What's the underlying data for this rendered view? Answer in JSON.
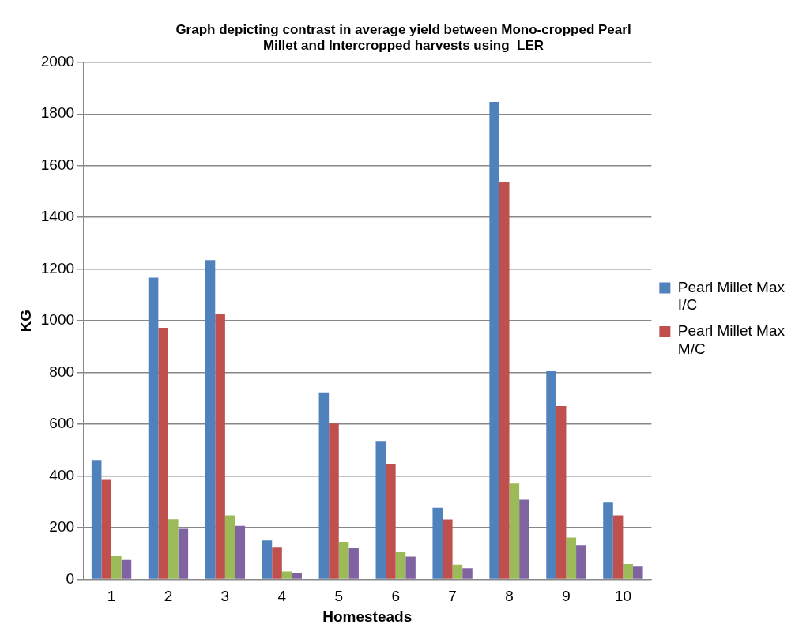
{
  "chart_data": {
    "type": "bar",
    "title": "Graph depicting contrast in average yield between Mono-cropped Pearl Millet and Intercropped harvests using  LER",
    "xlabel": "Homesteads",
    "ylabel": "KG",
    "categories": [
      "1",
      "2",
      "3",
      "4",
      "5",
      "6",
      "7",
      "8",
      "9",
      "10"
    ],
    "series": [
      {
        "name": "Pearl Millet Max I/C",
        "color": "#4f81bd",
        "values": [
          462,
          1167,
          1235,
          150,
          723,
          535,
          277,
          1847,
          805,
          297
        ]
      },
      {
        "name": "Pearl Millet Max M/C",
        "color": "#c0504d",
        "values": [
          385,
          973,
          1028,
          123,
          602,
          447,
          232,
          1538,
          670,
          247
        ]
      },
      {
        "color": "#9bbb59",
        "values": [
          90,
          233,
          247,
          30,
          145,
          105,
          57,
          370,
          162,
          59
        ]
      },
      {
        "color": "#8064a2",
        "values": [
          75,
          195,
          207,
          23,
          120,
          88,
          43,
          308,
          132,
          49
        ]
      }
    ],
    "ylim": [
      0,
      2000
    ],
    "yticks": [
      0,
      200,
      400,
      600,
      800,
      1000,
      1200,
      1400,
      1600,
      1800,
      2000
    ],
    "grid": "y",
    "legend": "right"
  }
}
